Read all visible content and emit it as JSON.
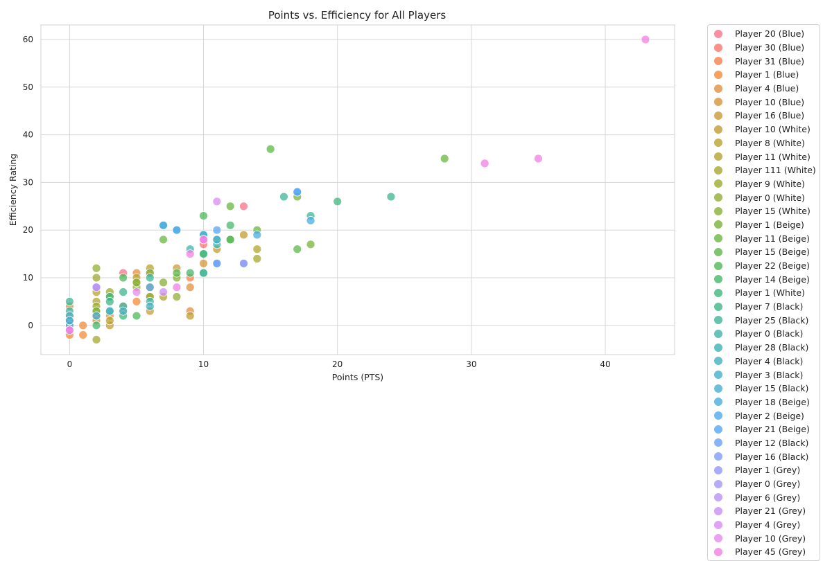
{
  "chart_data": {
    "type": "scatter",
    "title": "Points vs. Efficiency for All Players",
    "xlabel": "Points (PTS)",
    "ylabel": "Efficiency Rating",
    "xlim": [
      -2.2,
      45.2
    ],
    "ylim": [
      -6.2,
      63.2
    ],
    "x_ticks": [
      0,
      10,
      20,
      30,
      40
    ],
    "y_ticks": [
      0,
      10,
      20,
      30,
      40,
      50,
      60
    ],
    "grid": true,
    "legend_position": "outside-right",
    "series": [
      {
        "name": "Player 20 (Blue)",
        "color": "#f77189",
        "points": [
          [
            4,
            11
          ],
          [
            13,
            25
          ],
          [
            2,
            2
          ],
          [
            0,
            0
          ]
        ]
      },
      {
        "name": "Player 30 (Blue)",
        "color": "#f7766a",
        "points": [
          [
            10,
            17
          ],
          [
            6,
            11
          ],
          [
            0,
            2
          ]
        ]
      },
      {
        "name": "Player 31 (Blue)",
        "color": "#f6804f",
        "points": [
          [
            9,
            10
          ],
          [
            2,
            2
          ],
          [
            0,
            1
          ]
        ]
      },
      {
        "name": "Player 1 (Blue)",
        "color": "#f48a35",
        "points": [
          [
            1,
            0
          ],
          [
            1,
            -2
          ],
          [
            0,
            -2
          ],
          [
            5,
            5
          ]
        ]
      },
      {
        "name": "Player 4 (Blue)",
        "color": "#e38f3f",
        "points": [
          [
            9,
            8
          ],
          [
            5,
            11
          ],
          [
            9,
            3
          ],
          [
            3,
            2
          ]
        ]
      },
      {
        "name": "Player 10 (Blue)",
        "color": "#d6953a",
        "points": [
          [
            10,
            13
          ],
          [
            6,
            8
          ],
          [
            4,
            4
          ],
          [
            0,
            4
          ]
        ]
      },
      {
        "name": "Player 16 (Blue)",
        "color": "#cb9a35",
        "points": [
          [
            6,
            3
          ],
          [
            8,
            12
          ],
          [
            4,
            3
          ],
          [
            2,
            1
          ]
        ]
      },
      {
        "name": "Player 10 (White)",
        "color": "#c19e31",
        "points": [
          [
            13,
            19
          ],
          [
            11,
            16
          ],
          [
            9,
            2
          ],
          [
            3,
            0
          ]
        ]
      },
      {
        "name": "Player 8 (White)",
        "color": "#b9a22e",
        "points": [
          [
            6,
            12
          ],
          [
            5,
            10
          ],
          [
            3,
            1
          ],
          [
            2,
            7
          ]
        ]
      },
      {
        "name": "Player 11 (White)",
        "color": "#b1a42e",
        "points": [
          [
            14,
            16
          ],
          [
            7,
            6
          ],
          [
            5,
            9
          ],
          [
            2,
            5
          ]
        ]
      },
      {
        "name": "Player 111 (White)",
        "color": "#a7a72f",
        "points": [
          [
            14,
            14
          ],
          [
            2,
            -3
          ],
          [
            6,
            6
          ],
          [
            2,
            3
          ]
        ]
      },
      {
        "name": "Player 9 (White)",
        "color": "#9eaa31",
        "points": [
          [
            2,
            10
          ],
          [
            3,
            7
          ],
          [
            2,
            4
          ],
          [
            6,
            6
          ]
        ]
      },
      {
        "name": "Player 0 (White)",
        "color": "#93ad33",
        "points": [
          [
            2,
            12
          ],
          [
            5,
            8
          ],
          [
            8,
            6
          ],
          [
            3,
            6
          ]
        ]
      },
      {
        "name": "Player 15 (White)",
        "color": "#87b035",
        "points": [
          [
            7,
            9
          ],
          [
            5,
            9
          ],
          [
            8,
            10
          ],
          [
            6,
            11
          ]
        ]
      },
      {
        "name": "Player 1 (Beige)",
        "color": "#79b337",
        "points": [
          [
            17,
            27
          ],
          [
            18,
            17
          ],
          [
            2,
            3
          ],
          [
            12,
            18
          ]
        ]
      },
      {
        "name": "Player 11 (Beige)",
        "color": "#6ab73f",
        "points": [
          [
            28,
            35
          ],
          [
            12,
            25
          ],
          [
            14,
            20
          ],
          [
            7,
            18
          ]
        ]
      },
      {
        "name": "Player 15 (Beige)",
        "color": "#5cb84a",
        "points": [
          [
            15,
            37
          ],
          [
            17,
            16
          ],
          [
            8,
            11
          ],
          [
            10,
            11
          ]
        ]
      },
      {
        "name": "Player 22 (Beige)",
        "color": "#4fb85a",
        "points": [
          [
            10,
            23
          ],
          [
            12,
            18
          ],
          [
            4,
            10
          ],
          [
            5,
            2
          ]
        ]
      },
      {
        "name": "Player 14 (Beige)",
        "color": "#45b86c",
        "points": [
          [
            12,
            21
          ],
          [
            10,
            15
          ],
          [
            9,
            11
          ],
          [
            2,
            0
          ]
        ]
      },
      {
        "name": "Player 1 (White)",
        "color": "#40b77c",
        "points": [
          [
            20,
            26
          ],
          [
            10,
            15
          ],
          [
            4,
            2
          ],
          [
            3,
            6
          ]
        ]
      },
      {
        "name": "Player 7 (Black)",
        "color": "#3eb68a",
        "points": [
          [
            24,
            27
          ],
          [
            11,
            18
          ],
          [
            4,
            7
          ],
          [
            3,
            5
          ]
        ]
      },
      {
        "name": "Player 25 (Black)",
        "color": "#3eb598",
        "points": [
          [
            16,
            27
          ],
          [
            18,
            23
          ],
          [
            6,
            10
          ],
          [
            0,
            5
          ]
        ]
      },
      {
        "name": "Player 0 (Black)",
        "color": "#3fb4a5",
        "points": [
          [
            10,
            11
          ],
          [
            4,
            4
          ],
          [
            3,
            3
          ],
          [
            0,
            3
          ]
        ]
      },
      {
        "name": "Player 28 (Black)",
        "color": "#40b3b1",
        "points": [
          [
            9,
            16
          ],
          [
            11,
            17
          ],
          [
            6,
            5
          ],
          [
            0,
            1
          ]
        ]
      },
      {
        "name": "Player 4 (Black)",
        "color": "#42b2bd",
        "points": [
          [
            10,
            19
          ],
          [
            6,
            4
          ],
          [
            3,
            3
          ],
          [
            0,
            2
          ]
        ]
      },
      {
        "name": "Player 3 (Black)",
        "color": "#44b0c8",
        "points": [
          [
            7,
            21
          ],
          [
            11,
            18
          ],
          [
            4,
            3
          ],
          [
            0,
            0
          ]
        ]
      },
      {
        "name": "Player 15 (Black)",
        "color": "#47aed3",
        "points": [
          [
            10,
            19
          ],
          [
            8,
            20
          ],
          [
            2,
            2
          ],
          [
            0,
            1
          ]
        ]
      },
      {
        "name": "Player 18 (Beige)",
        "color": "#4aace0",
        "points": [
          [
            17,
            28
          ],
          [
            18,
            22
          ],
          [
            14,
            19
          ],
          [
            7,
            21
          ]
        ]
      },
      {
        "name": "Player 2 (Beige)",
        "color": "#4faaec",
        "points": [
          [
            8,
            20
          ],
          [
            11,
            13
          ],
          [
            6,
            8
          ]
        ]
      },
      {
        "name": "Player 21 (Beige)",
        "color": "#57a6f5",
        "points": [
          [
            11,
            20
          ],
          [
            17,
            28
          ]
        ]
      },
      {
        "name": "Player 12 (Black)",
        "color": "#6aa0f8",
        "points": [
          [
            11,
            13
          ]
        ]
      },
      {
        "name": "Player 16 (Black)",
        "color": "#7f9cf8",
        "points": [
          [
            13,
            13
          ]
        ]
      },
      {
        "name": "Player 1 (Grey)",
        "color": "#9399f7",
        "points": [
          [
            13,
            13
          ]
        ]
      },
      {
        "name": "Player 0 (Grey)",
        "color": "#a795f6",
        "points": [
          [
            2,
            8
          ]
        ]
      },
      {
        "name": "Player 6 (Grey)",
        "color": "#b991f5",
        "points": [
          [
            2,
            8
          ]
        ]
      },
      {
        "name": "Player 21 (Grey)",
        "color": "#c98ef4",
        "points": [
          [
            7,
            7
          ]
        ]
      },
      {
        "name": "Player 4 (Grey)",
        "color": "#d98af3",
        "points": [
          [
            11,
            26
          ],
          [
            0,
            -1
          ]
        ]
      },
      {
        "name": "Player 10 (Grey)",
        "color": "#e887ef",
        "points": [
          [
            10,
            18
          ],
          [
            5,
            7
          ]
        ]
      },
      {
        "name": "Player 45 (Grey)",
        "color": "#f17ee2",
        "points": [
          [
            43,
            60
          ],
          [
            31,
            34
          ],
          [
            35,
            35
          ],
          [
            9,
            15
          ],
          [
            8,
            8
          ],
          [
            0,
            -1
          ],
          [
            10,
            18
          ]
        ]
      }
    ]
  }
}
